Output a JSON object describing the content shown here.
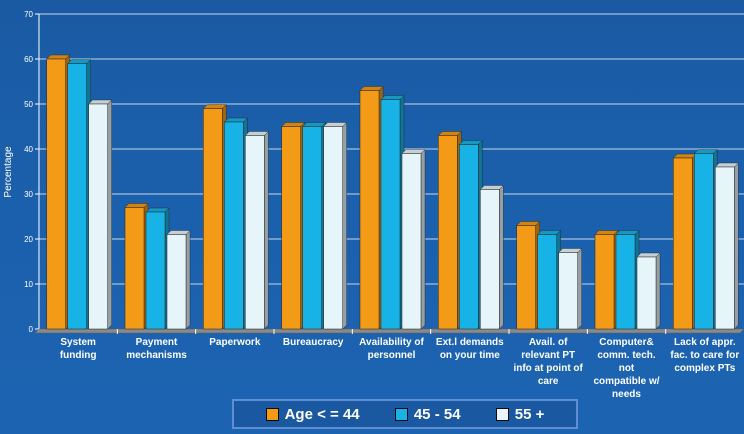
{
  "chart_data": {
    "type": "bar",
    "ylabel": "Percentage",
    "xlabel": "",
    "ylim": [
      0,
      70
    ],
    "yticks": [
      0,
      10,
      20,
      30,
      40,
      50,
      60,
      70
    ],
    "grid": true,
    "legend_position": "bottom",
    "categories": [
      [
        "System",
        "funding"
      ],
      [
        "Payment",
        "mechanisms"
      ],
      [
        "Paperwork"
      ],
      [
        "Bureaucracy"
      ],
      [
        "Availability of",
        "personnel"
      ],
      [
        "Ext.l demands",
        "on your time"
      ],
      [
        "Avail. of",
        "relevant PT",
        "info at  point of",
        "care"
      ],
      [
        "Computer&",
        "comm. tech.",
        "not",
        "compatible w/",
        "needs"
      ],
      [
        "Lack of appr.",
        "fac. to care for",
        "complex PTs"
      ]
    ],
    "series": [
      {
        "name": "Age < = 44",
        "color": "#f39b16",
        "values": [
          60,
          27,
          49,
          45,
          53,
          43,
          23,
          21,
          38
        ]
      },
      {
        "name": "45 - 54",
        "color": "#18b3e6",
        "values": [
          59,
          26,
          46,
          45,
          51,
          41,
          21,
          21,
          39
        ]
      },
      {
        "name": "55 +",
        "color": "#e6f5fa",
        "values": [
          50,
          21,
          43,
          45,
          39,
          31,
          17,
          16,
          36
        ]
      }
    ]
  }
}
